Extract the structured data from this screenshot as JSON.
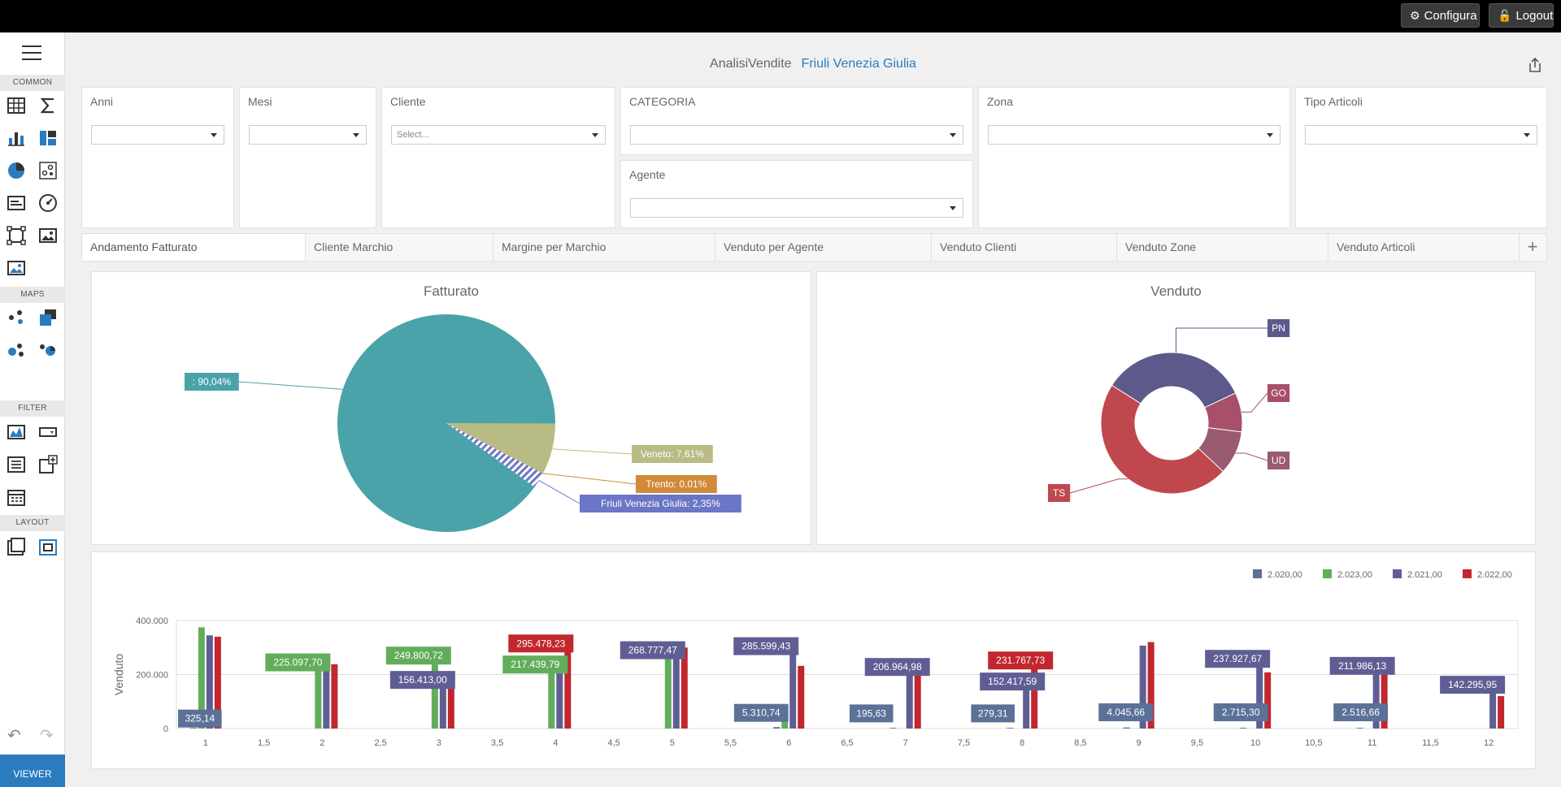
{
  "topbar": {
    "configure_label": "Configura",
    "logout_label": "Logout"
  },
  "sidebar": {
    "sections": {
      "common": "COMMON",
      "maps": "MAPS",
      "filter": "FILTER",
      "layout": "LAYOUT"
    },
    "viewer_label": "VIEWER",
    "undo_icon": "↶",
    "redo_icon": "↷"
  },
  "header": {
    "title": "AnalisiVendite",
    "subtitle": "Friuli Venezia Giulia"
  },
  "filters": {
    "anni": {
      "label": "Anni",
      "value": ""
    },
    "mesi": {
      "label": "Mesi",
      "value": ""
    },
    "cliente": {
      "label": "Cliente",
      "value": "Select..."
    },
    "categoria": {
      "label": "CATEGORIA",
      "value": ""
    },
    "agente": {
      "label": "Agente",
      "value": ""
    },
    "zona": {
      "label": "Zona",
      "value": ""
    },
    "tipo_articoli": {
      "label": "Tipo Articoli",
      "value": ""
    }
  },
  "tabs": [
    {
      "label": "Andamento Fatturato"
    },
    {
      "label": "Cliente Marchio"
    },
    {
      "label": "Margine per Marchio"
    },
    {
      "label": "Venduto per Agente"
    },
    {
      "label": "Venduto Clienti"
    },
    {
      "label": "Venduto Zone"
    },
    {
      "label": "Venduto Articoli"
    }
  ],
  "tab_add_label": "+",
  "chart_data": [
    {
      "type": "pie",
      "title": "Fatturato",
      "slices": [
        {
          "label": ": 90,04%",
          "value": 90.04,
          "color": "#4aa3a9"
        },
        {
          "label": "Veneto: 7,61%",
          "value": 7.61,
          "color": "#b9bb85"
        },
        {
          "label": "Trento: 0,01%",
          "value": 0.01,
          "color": "#d08a3a"
        },
        {
          "label": "Friuli Venezia Giulia: 2,35%",
          "value": 2.35,
          "color": "#6b76c6"
        }
      ]
    },
    {
      "type": "pie",
      "title": "Venduto",
      "slices": [
        {
          "label": "PN",
          "value": 34,
          "color": "#5c5a8a"
        },
        {
          "label": "GO",
          "value": 9,
          "color": "#a84f6a"
        },
        {
          "label": "UD",
          "value": 10,
          "color": "#9a5a70"
        },
        {
          "label": "TS",
          "value": 47,
          "color": "#c0474d"
        }
      ]
    },
    {
      "type": "bar",
      "title": "",
      "ylabel": "Venduto",
      "xlabel": "",
      "ylim": [
        0,
        400000
      ],
      "y_ticks": [
        "0",
        "200.000",
        "400.000"
      ],
      "x_ticks": [
        "1",
        "1,5",
        "2",
        "2,5",
        "3",
        "3,5",
        "4",
        "4,5",
        "5",
        "5,5",
        "6",
        "6,5",
        "7",
        "7,5",
        "8",
        "8,5",
        "9",
        "9,5",
        "10",
        "10,5",
        "11",
        "11,5",
        "12"
      ],
      "legend_position": "top-right",
      "categories": [
        1,
        2,
        3,
        4,
        5,
        6,
        7,
        8,
        9,
        10,
        11,
        12
      ],
      "series": [
        {
          "name": "2.020,00",
          "color": "#5b7198",
          "values": [
            325.14,
            null,
            null,
            null,
            null,
            5310.74,
            195.63,
            279.31,
            4045.66,
            2715.3,
            2516.66,
            null
          ]
        },
        {
          "name": "2.023,00",
          "color": "#62ad5b",
          "values": [
            375000,
            225097.7,
            249800.72,
            217439.79,
            305000,
            30000,
            null,
            null,
            null,
            null,
            null,
            null
          ]
        },
        {
          "name": "2.021,00",
          "color": "#5f5e94",
          "values": [
            345000,
            225000,
            156413.0,
            255000,
            268777.47,
            285599.43,
            206964.98,
            152417.59,
            307000,
            237927.67,
            211986.13,
            142295.95
          ]
        },
        {
          "name": "2.022,00",
          "color": "#c1272d",
          "values": [
            340000,
            238000,
            190000,
            295478.23,
            300000,
            232000,
            225000,
            231767.73,
            320000,
            208000,
            218000,
            120000
          ]
        }
      ],
      "data_labels": [
        {
          "text": "325,14",
          "color": "#5b7198"
        },
        {
          "text": "225.097,70",
          "color": "#62ad5b"
        },
        {
          "text": "249.800,72",
          "color": "#62ad5b"
        },
        {
          "text": "156.413,00",
          "color": "#5f5e94"
        },
        {
          "text": "217.439,79",
          "color": "#62ad5b"
        },
        {
          "text": "295.478,23",
          "color": "#c1272d"
        },
        {
          "text": "268.777,47",
          "color": "#5f5e94"
        },
        {
          "text": "285.599,43",
          "color": "#5f5e94"
        },
        {
          "text": "5.310,74",
          "color": "#5b7198"
        },
        {
          "text": "206.964,98",
          "color": "#5f5e94"
        },
        {
          "text": "195,63",
          "color": "#5b7198"
        },
        {
          "text": "231.767,73",
          "color": "#c1272d"
        },
        {
          "text": "152.417,59",
          "color": "#5f5e94"
        },
        {
          "text": "279,31",
          "color": "#5b7198"
        },
        {
          "text": "4.045,66",
          "color": "#5b7198"
        },
        {
          "text": "237.927,67",
          "color": "#5f5e94"
        },
        {
          "text": "2.715,30",
          "color": "#5b7198"
        },
        {
          "text": "211.986,13",
          "color": "#5f5e94"
        },
        {
          "text": "2.516,66",
          "color": "#5b7198"
        },
        {
          "text": "142.295,95",
          "color": "#5f5e94"
        }
      ]
    }
  ]
}
